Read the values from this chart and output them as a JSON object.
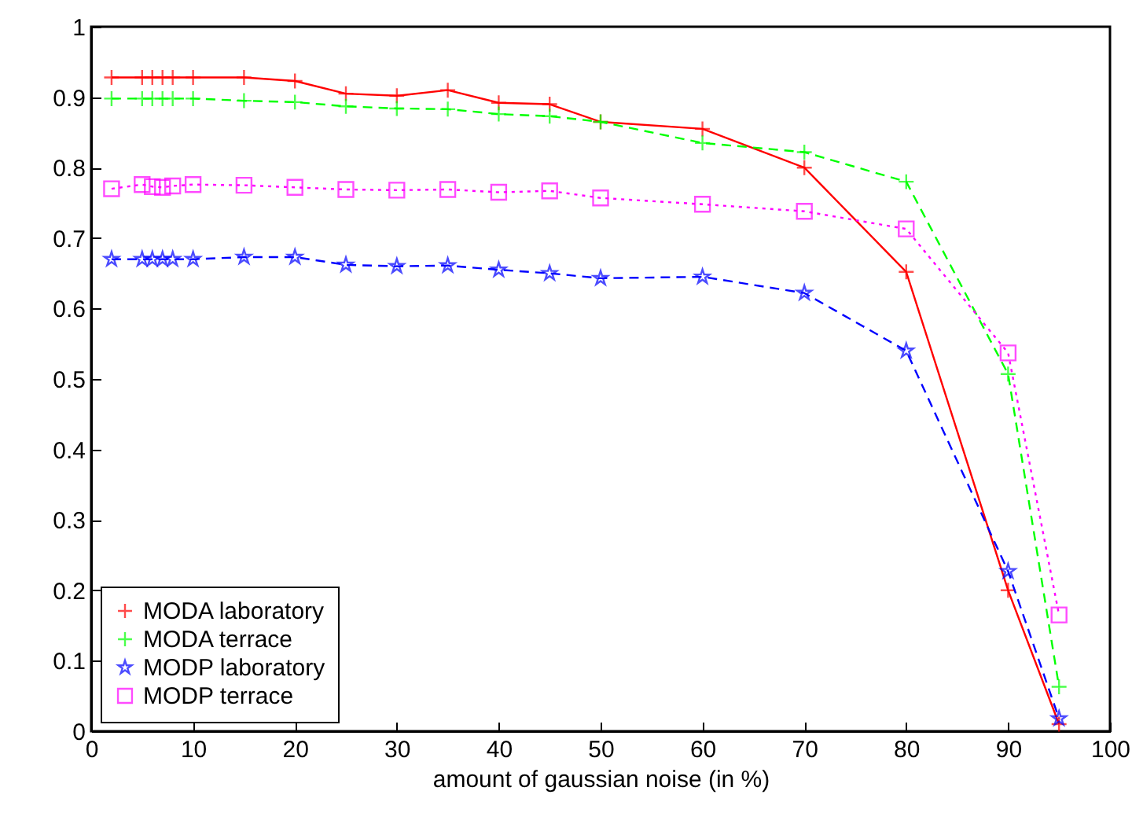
{
  "chart_data": {
    "type": "line",
    "xlabel": "amount of gaussian noise (in %)",
    "x": [
      2,
      5,
      6,
      7,
      8,
      10,
      15,
      20,
      25,
      30,
      35,
      40,
      45,
      50,
      60,
      70,
      80,
      90,
      95
    ],
    "series": [
      {
        "name": "MODA laboratory",
        "color": "#ff0000",
        "marker": "cross",
        "line_style": "solid",
        "values": [
          0.928,
          0.928,
          0.928,
          0.928,
          0.928,
          0.928,
          0.928,
          0.923,
          0.905,
          0.902,
          0.91,
          0.892,
          0.89,
          0.865,
          0.855,
          0.8,
          0.652,
          0.2,
          0.01
        ]
      },
      {
        "name": "MODA terrace",
        "color": "#00ff00",
        "marker": "cross",
        "line_style": "dashed",
        "values": [
          0.898,
          0.898,
          0.898,
          0.898,
          0.898,
          0.898,
          0.895,
          0.893,
          0.887,
          0.884,
          0.883,
          0.876,
          0.873,
          0.865,
          0.835,
          0.822,
          0.78,
          0.507,
          0.063
        ]
      },
      {
        "name": "MODP laboratory",
        "color": "#0000ff",
        "marker": "star",
        "line_style": "dashed",
        "values": [
          0.67,
          0.67,
          0.67,
          0.67,
          0.67,
          0.67,
          0.673,
          0.673,
          0.662,
          0.66,
          0.661,
          0.655,
          0.65,
          0.643,
          0.645,
          0.622,
          0.54,
          0.227,
          0.018
        ]
      },
      {
        "name": "MODP terrace",
        "color": "#ff00ff",
        "marker": "square",
        "line_style": "dotted",
        "values": [
          0.77,
          0.776,
          0.773,
          0.772,
          0.774,
          0.776,
          0.775,
          0.772,
          0.769,
          0.768,
          0.769,
          0.765,
          0.767,
          0.757,
          0.748,
          0.738,
          0.713,
          0.537,
          0.165
        ]
      }
    ],
    "xlim": [
      0,
      100
    ],
    "xticks": [
      0,
      10,
      20,
      30,
      40,
      50,
      60,
      70,
      80,
      90,
      100
    ],
    "ylim": [
      0,
      1
    ],
    "yticks": [
      0,
      0.1,
      0.2,
      0.3,
      0.4,
      0.5,
      0.6,
      0.7,
      0.8,
      0.9,
      1
    ],
    "grid": false,
    "legend": "bottom left"
  }
}
